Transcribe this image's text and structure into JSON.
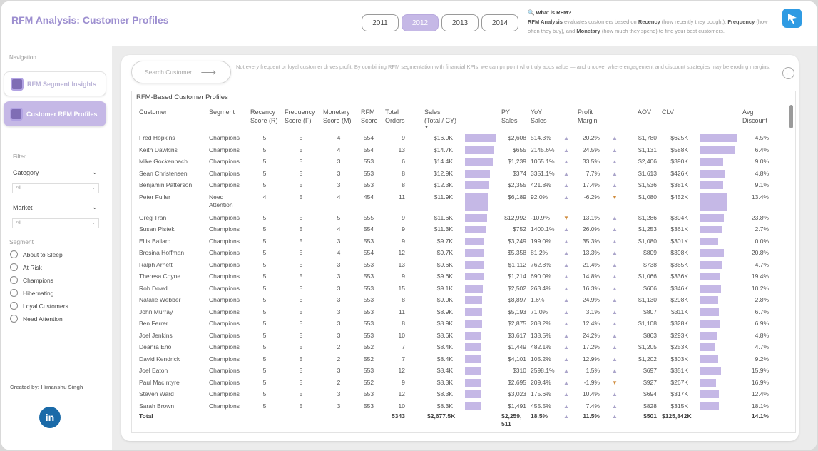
{
  "header": {
    "title": "RFM Analysis: Customer Profiles",
    "years": [
      "2011",
      "2012",
      "2013",
      "2014"
    ],
    "active_year": "2012",
    "info_question": "🔍 What is RFM?",
    "info_line1_pre": "RFM Analysis",
    "info_line1_mid": " evaluates customers based on ",
    "info_recency": "Recency",
    "info_recency_desc": " (how recently they bought), ",
    "info_frequency": "Frequency",
    "info_frequency_desc": " (how often they buy), and ",
    "info_monetary": "Monetary",
    "info_monetary_desc": " (how much they spend) to find your best customers.",
    "logo_icon": "plane-icon",
    "logo_color": "#2f9be3"
  },
  "sidebar": {
    "nav_label": "Navigation",
    "nav_items": [
      {
        "label": "RFM Segment Insights",
        "active": false
      },
      {
        "label": "Customer RFM Profiles",
        "active": true
      }
    ],
    "filter_label": "Filter",
    "category_label": "Category",
    "category_value": "All",
    "market_label": "Market",
    "market_value": "All",
    "segment_label": "Segment",
    "segments": [
      "About to Sleep",
      "At Risk",
      "Champions",
      "Hibernating",
      "Loyal Customers",
      "Need Attention"
    ],
    "created_by": "Created by: Himanshu Singh",
    "linkedin_text": "in"
  },
  "main": {
    "search_placeholder": "Search Customer",
    "description": "Not every frequent or loyal customer drives profit. By combining RFM segmentation with financial KPIs, we can pinpoint who truly adds value — and uncover where engagement and discount strategies may be eroding margins.",
    "table_title": "RFM-Based Customer Profiles",
    "accent_color": "#c5b8e6",
    "columns": {
      "customer": "Customer",
      "segment": "Segment",
      "recency": "Recency\nScore (R)",
      "frequency": "Frequency\nScore (F)",
      "monetary": "Monetary\nScore (M)",
      "rfm": "RFM\nScore",
      "orders": "Total\nOrders",
      "sales": "Sales\n(Total / CY)",
      "py_sales": "PY\nSales",
      "yoy": "YoY\nSales",
      "margin": "Profit\nMargin",
      "aov": "AOV",
      "clv": "CLV",
      "discount": "Avg\nDiscount"
    },
    "rows": [
      {
        "customer": "Fred Hopkins",
        "segment": "Champions",
        "r": "5",
        "f": "5",
        "m": "4",
        "rfm": "554",
        "orders": "9",
        "sales": "$16.0K",
        "sales_v": 16.0,
        "py": "$2,608",
        "yoy": "514.3%",
        "yoy_up": true,
        "margin": "20.2%",
        "margin_up": true,
        "aov": "$1,780",
        "clv": "$625K",
        "clv_v": 625,
        "disc": "4.5%"
      },
      {
        "customer": "Keith Dawkins",
        "segment": "Champions",
        "r": "5",
        "f": "5",
        "m": "4",
        "rfm": "554",
        "orders": "13",
        "sales": "$14.7K",
        "sales_v": 14.7,
        "py": "$655",
        "yoy": "2145.6%",
        "yoy_up": true,
        "margin": "24.5%",
        "margin_up": true,
        "aov": "$1,131",
        "clv": "$588K",
        "clv_v": 588,
        "disc": "6.4%"
      },
      {
        "customer": "Mike Gockenbach",
        "segment": "Champions",
        "r": "5",
        "f": "5",
        "m": "3",
        "rfm": "553",
        "orders": "6",
        "sales": "$14.4K",
        "sales_v": 14.4,
        "py": "$1,239",
        "yoy": "1065.1%",
        "yoy_up": true,
        "margin": "33.5%",
        "margin_up": true,
        "aov": "$2,406",
        "clv": "$390K",
        "clv_v": 390,
        "disc": "9.0%"
      },
      {
        "customer": "Sean Christensen",
        "segment": "Champions",
        "r": "5",
        "f": "5",
        "m": "3",
        "rfm": "553",
        "orders": "8",
        "sales": "$12.9K",
        "sales_v": 12.9,
        "py": "$374",
        "yoy": "3351.1%",
        "yoy_up": true,
        "margin": "7.7%",
        "margin_up": true,
        "aov": "$1,613",
        "clv": "$426K",
        "clv_v": 426,
        "disc": "4.8%"
      },
      {
        "customer": "Benjamin Patterson",
        "segment": "Champions",
        "r": "5",
        "f": "5",
        "m": "3",
        "rfm": "553",
        "orders": "8",
        "sales": "$12.3K",
        "sales_v": 12.3,
        "py": "$2,355",
        "yoy": "421.8%",
        "yoy_up": true,
        "margin": "17.4%",
        "margin_up": true,
        "aov": "$1,536",
        "clv": "$381K",
        "clv_v": 381,
        "disc": "9.1%"
      },
      {
        "customer": "Peter Fuller",
        "customer2": "",
        "segment": "Need\nAttention",
        "r": "4",
        "f": "5",
        "m": "4",
        "rfm": "454",
        "orders": "11",
        "sales": "$11.9K",
        "sales_v": 11.9,
        "py": "$6,189",
        "yoy": "92.0%",
        "yoy_up": true,
        "margin": "-6.2%",
        "margin_up": false,
        "aov": "$1,080",
        "clv": "$452K",
        "clv_v": 452,
        "disc": "13.4%",
        "tall": true
      },
      {
        "customer": "Greg Tran",
        "segment": "Champions",
        "r": "5",
        "f": "5",
        "m": "5",
        "rfm": "555",
        "orders": "9",
        "sales": "$11.6K",
        "sales_v": 11.6,
        "py": "$12,992",
        "yoy": "-10.9%",
        "yoy_up": false,
        "margin": "13.1%",
        "margin_up": true,
        "aov": "$1,286",
        "clv": "$394K",
        "clv_v": 394,
        "disc": "23.8%"
      },
      {
        "customer": "Susan Pistek",
        "segment": "Champions",
        "r": "5",
        "f": "5",
        "m": "4",
        "rfm": "554",
        "orders": "9",
        "sales": "$11.3K",
        "sales_v": 11.3,
        "py": "$752",
        "yoy": "1400.1%",
        "yoy_up": true,
        "margin": "26.0%",
        "margin_up": true,
        "aov": "$1,253",
        "clv": "$361K",
        "clv_v": 361,
        "disc": "2.7%"
      },
      {
        "customer": "Ellis Ballard",
        "segment": "Champions",
        "r": "5",
        "f": "5",
        "m": "3",
        "rfm": "553",
        "orders": "9",
        "sales": "$9.7K",
        "sales_v": 9.7,
        "py": "$3,249",
        "yoy": "199.0%",
        "yoy_up": true,
        "margin": "35.3%",
        "margin_up": true,
        "aov": "$1,080",
        "clv": "$301K",
        "clv_v": 301,
        "disc": "0.0%"
      },
      {
        "customer": "Brosina Hoffman",
        "segment": "Champions",
        "r": "5",
        "f": "5",
        "m": "4",
        "rfm": "554",
        "orders": "12",
        "sales": "$9.7K",
        "sales_v": 9.7,
        "py": "$5,358",
        "yoy": "81.2%",
        "yoy_up": true,
        "margin": "13.3%",
        "margin_up": true,
        "aov": "$809",
        "clv": "$398K",
        "clv_v": 398,
        "disc": "20.8%"
      },
      {
        "customer": "Ralph Arnett",
        "segment": "Champions",
        "r": "5",
        "f": "5",
        "m": "3",
        "rfm": "553",
        "orders": "13",
        "sales": "$9.6K",
        "sales_v": 9.6,
        "py": "$1,112",
        "yoy": "762.8%",
        "yoy_up": true,
        "margin": "21.4%",
        "margin_up": true,
        "aov": "$738",
        "clv": "$365K",
        "clv_v": 365,
        "disc": "4.7%"
      },
      {
        "customer": "Theresa Coyne",
        "segment": "Champions",
        "r": "5",
        "f": "5",
        "m": "3",
        "rfm": "553",
        "orders": "9",
        "sales": "$9.6K",
        "sales_v": 9.6,
        "py": "$1,214",
        "yoy": "690.0%",
        "yoy_up": true,
        "margin": "14.8%",
        "margin_up": true,
        "aov": "$1,066",
        "clv": "$336K",
        "clv_v": 336,
        "disc": "19.4%"
      },
      {
        "customer": "Rob Dowd",
        "segment": "Champions",
        "r": "5",
        "f": "5",
        "m": "3",
        "rfm": "553",
        "orders": "15",
        "sales": "$9.1K",
        "sales_v": 9.1,
        "py": "$2,502",
        "yoy": "263.4%",
        "yoy_up": true,
        "margin": "16.3%",
        "margin_up": true,
        "aov": "$606",
        "clv": "$346K",
        "clv_v": 346,
        "disc": "10.2%"
      },
      {
        "customer": "Natalie Webber",
        "segment": "Champions",
        "r": "5",
        "f": "5",
        "m": "3",
        "rfm": "553",
        "orders": "8",
        "sales": "$9.0K",
        "sales_v": 9.0,
        "py": "$8,897",
        "yoy": "1.6%",
        "yoy_up": true,
        "margin": "24.9%",
        "margin_up": true,
        "aov": "$1,130",
        "clv": "$298K",
        "clv_v": 298,
        "disc": "2.8%"
      },
      {
        "customer": "John Murray",
        "segment": "Champions",
        "r": "5",
        "f": "5",
        "m": "3",
        "rfm": "553",
        "orders": "11",
        "sales": "$8.9K",
        "sales_v": 8.9,
        "py": "$5,193",
        "yoy": "71.0%",
        "yoy_up": true,
        "margin": "3.1%",
        "margin_up": true,
        "aov": "$807",
        "clv": "$311K",
        "clv_v": 311,
        "disc": "6.7%"
      },
      {
        "customer": "Ben Ferrer",
        "segment": "Champions",
        "r": "5",
        "f": "5",
        "m": "3",
        "rfm": "553",
        "orders": "8",
        "sales": "$8.9K",
        "sales_v": 8.9,
        "py": "$2,875",
        "yoy": "208.2%",
        "yoy_up": true,
        "margin": "12.4%",
        "margin_up": true,
        "aov": "$1,108",
        "clv": "$328K",
        "clv_v": 328,
        "disc": "6.9%"
      },
      {
        "customer": "Joel Jenkins",
        "segment": "Champions",
        "r": "5",
        "f": "5",
        "m": "3",
        "rfm": "553",
        "orders": "10",
        "sales": "$8.6K",
        "sales_v": 8.6,
        "py": "$3,617",
        "yoy": "138.5%",
        "yoy_up": true,
        "margin": "24.2%",
        "margin_up": true,
        "aov": "$863",
        "clv": "$293K",
        "clv_v": 293,
        "disc": "4.8%"
      },
      {
        "customer": "Deanra Eno",
        "segment": "Champions",
        "r": "5",
        "f": "5",
        "m": "2",
        "rfm": "552",
        "orders": "7",
        "sales": "$8.4K",
        "sales_v": 8.4,
        "py": "$1,449",
        "yoy": "482.1%",
        "yoy_up": true,
        "margin": "17.2%",
        "margin_up": true,
        "aov": "$1,205",
        "clv": "$253K",
        "clv_v": 253,
        "disc": "4.7%"
      },
      {
        "customer": "David Kendrick",
        "segment": "Champions",
        "r": "5",
        "f": "5",
        "m": "2",
        "rfm": "552",
        "orders": "7",
        "sales": "$8.4K",
        "sales_v": 8.4,
        "py": "$4,101",
        "yoy": "105.2%",
        "yoy_up": true,
        "margin": "12.9%",
        "margin_up": true,
        "aov": "$1,202",
        "clv": "$303K",
        "clv_v": 303,
        "disc": "9.2%"
      },
      {
        "customer": "Joel Eaton",
        "segment": "Champions",
        "r": "5",
        "f": "5",
        "m": "3",
        "rfm": "553",
        "orders": "12",
        "sales": "$8.4K",
        "sales_v": 8.4,
        "py": "$310",
        "yoy": "2598.1%",
        "yoy_up": true,
        "margin": "1.5%",
        "margin_up": true,
        "aov": "$697",
        "clv": "$351K",
        "clv_v": 351,
        "disc": "15.9%"
      },
      {
        "customer": "Paul MacIntyre",
        "segment": "Champions",
        "r": "5",
        "f": "5",
        "m": "2",
        "rfm": "552",
        "orders": "9",
        "sales": "$8.3K",
        "sales_v": 8.3,
        "py": "$2,695",
        "yoy": "209.4%",
        "yoy_up": true,
        "margin": "-1.9%",
        "margin_up": false,
        "aov": "$927",
        "clv": "$267K",
        "clv_v": 267,
        "disc": "16.9%"
      },
      {
        "customer": "Steven Ward",
        "segment": "Champions",
        "r": "5",
        "f": "5",
        "m": "3",
        "rfm": "553",
        "orders": "12",
        "sales": "$8.3K",
        "sales_v": 8.3,
        "py": "$3,023",
        "yoy": "175.6%",
        "yoy_up": true,
        "margin": "10.4%",
        "margin_up": true,
        "aov": "$694",
        "clv": "$317K",
        "clv_v": 317,
        "disc": "12.4%"
      },
      {
        "customer": "Sarah Brown",
        "segment": "Champions",
        "r": "5",
        "f": "5",
        "m": "3",
        "rfm": "553",
        "orders": "10",
        "sales": "$8.3K",
        "sales_v": 8.3,
        "py": "$1,491",
        "yoy": "455.5%",
        "yoy_up": true,
        "margin": "7.4%",
        "margin_up": true,
        "aov": "$828",
        "clv": "$315K",
        "clv_v": 315,
        "disc": "18.1%"
      }
    ],
    "total": {
      "label": "Total",
      "orders": "5343",
      "sales": "$2,677.5K",
      "py": "$2,259,\n511",
      "yoy": "18.5%",
      "yoy_up": true,
      "margin": "11.5%",
      "margin_up": true,
      "aov": "$501",
      "clv": "$125,842K",
      "disc": "14.1%"
    }
  }
}
